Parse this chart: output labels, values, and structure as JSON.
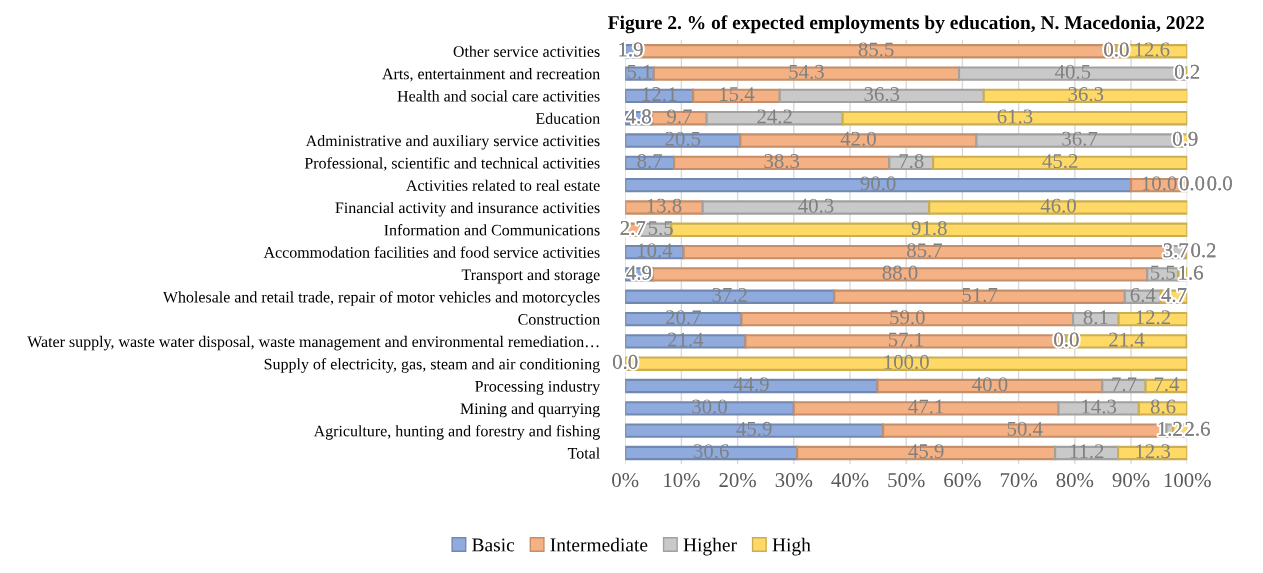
{
  "chart_data": {
    "type": "bar",
    "orientation": "horizontal",
    "stacked": true,
    "title": "Figure 2. % of expected employments by education, N. Macedonia, 2022",
    "categories": [
      "Other service activities",
      "Arts, entertainment and recreation",
      "Health and social care activities",
      "Education",
      "Administrative and auxiliary service activities",
      "Professional, scientific and technical activities",
      "Activities related to real estate",
      "Financial activity and insurance activities",
      "Information and Communications",
      "Accommodation facilities and food service activities",
      "Transport and storage",
      "Wholesale and retail trade, repair of motor vehicles and motorcycles",
      "Construction",
      "Water supply, waste water disposal, waste management and environmental remediation…",
      "Supply of electricity, gas, steam and air conditioning",
      "Processing industry",
      "Mining and quarrying",
      "Agriculture, hunting and forestry and fishing",
      "Total"
    ],
    "series": [
      {
        "name": "Basic",
        "color": "#8faadc",
        "values": [
          1.9,
          5.1,
          12.1,
          4.8,
          20.5,
          8.7,
          90.0,
          null,
          null,
          10.4,
          4.9,
          37.2,
          20.7,
          21.4,
          0.0,
          44.9,
          30.0,
          45.9,
          30.6
        ],
        "value_labels": [
          "1.9",
          "5.1",
          "12.1",
          "4.8",
          "20.5",
          "8.7",
          "90.0",
          null,
          null,
          "10.4",
          "4.9",
          "37.2",
          "20.7",
          "21.4",
          "0.0",
          "44.9",
          "30.0",
          "45.9",
          "30.6"
        ]
      },
      {
        "name": "Intermediate",
        "color": "#f4b183",
        "values": [
          85.5,
          54.3,
          15.4,
          9.7,
          42.0,
          38.3,
          10.0,
          13.8,
          2.7,
          85.7,
          88.0,
          51.7,
          59.0,
          57.1,
          null,
          40.0,
          47.1,
          50.4,
          45.9
        ],
        "value_labels": [
          "85.5",
          "54.3",
          "15.4",
          "9.7",
          "42.0",
          "38.3",
          "10.0",
          "13.8",
          "2.7",
          "85.7",
          "88.0",
          "51.7",
          "59.0",
          "57.1",
          null,
          "40.0",
          "47.1",
          "50.4",
          "45.9"
        ]
      },
      {
        "name": "Higher",
        "color": "#c9c9c9",
        "values": [
          0.0,
          40.5,
          36.3,
          24.2,
          36.7,
          7.8,
          0.0,
          40.3,
          5.5,
          3.7,
          5.5,
          6.4,
          8.1,
          0.0,
          null,
          7.7,
          14.3,
          1.2,
          11.2
        ],
        "value_labels": [
          "0.0",
          "40.5",
          "36.3",
          "24.2",
          "36.7",
          "7.8",
          "0.0",
          "40.3",
          "5.5",
          "3.7",
          "5.5",
          "6.4",
          "8.1",
          "0.0",
          null,
          "7.7",
          "14.3",
          "1.2",
          "11.2"
        ]
      },
      {
        "name": "High",
        "color": "#ffd966",
        "values": [
          12.6,
          0.2,
          36.3,
          61.3,
          0.9,
          45.2,
          0.0,
          46.0,
          91.8,
          0.2,
          1.6,
          4.7,
          12.2,
          21.4,
          100.0,
          7.4,
          8.6,
          2.6,
          12.3
        ],
        "value_labels": [
          "12.6",
          "0.2",
          "36.3",
          "61.3",
          "0.9",
          "45.2",
          "0.0",
          "46.0",
          "91.8",
          "0.2",
          "1.6",
          "4.7",
          "12.2",
          "21.4",
          "100.0",
          "7.4",
          "8.6",
          "2.6",
          "12.3"
        ]
      }
    ],
    "xlim": [
      0,
      100
    ],
    "xticks": [
      {
        "value": 0,
        "label": "0%"
      },
      {
        "value": 10,
        "label": "10%"
      },
      {
        "value": 20,
        "label": "20%"
      },
      {
        "value": 30,
        "label": "30%"
      },
      {
        "value": 40,
        "label": "40%"
      },
      {
        "value": 50,
        "label": "50%"
      },
      {
        "value": 60,
        "label": "60%"
      },
      {
        "value": 70,
        "label": "70%"
      },
      {
        "value": 80,
        "label": "80%"
      },
      {
        "value": 90,
        "label": "90%"
      },
      {
        "value": 100,
        "label": "100%"
      }
    ],
    "grid": "x",
    "legend": "bottom"
  }
}
